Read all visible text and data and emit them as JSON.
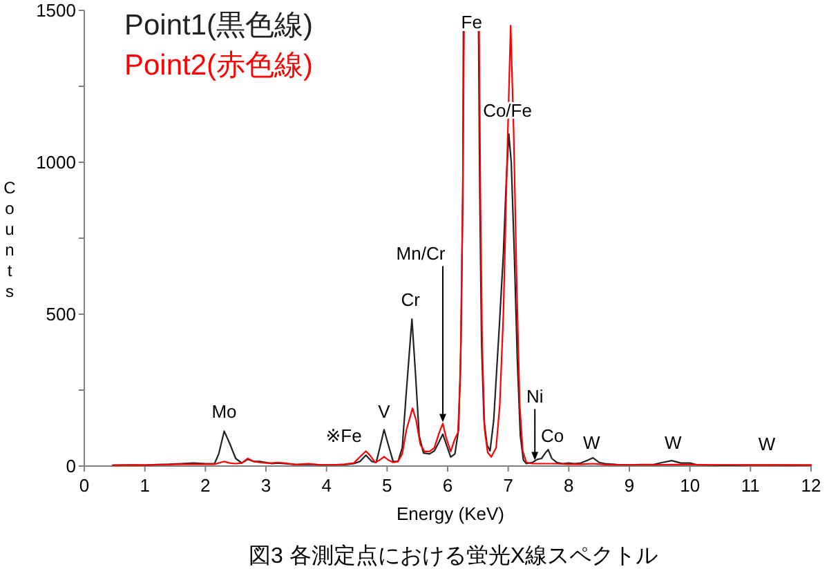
{
  "chart_data": {
    "type": "line",
    "title": "図3 各測定点における蛍光X線スペクトル",
    "xlabel": "Energy (KeV)",
    "ylabel": "Counts",
    "xlim": [
      0,
      12
    ],
    "xticks": [
      0,
      1,
      2,
      3,
      4,
      5,
      6,
      7,
      8,
      9,
      10,
      11,
      12
    ],
    "ylim": [
      0,
      1500
    ],
    "yticks": [
      0,
      {
        "value": 250,
        "label": null
      },
      500,
      {
        "value": 750,
        "label": null
      },
      1000,
      {
        "value": 1250,
        "label": null
      },
      1500
    ],
    "legend": "top left",
    "series": [
      {
        "name": "Point1(黒色線)",
        "color": "#222222",
        "x": [
          0.47,
          0.8,
          1.0,
          1.2,
          1.4,
          1.6,
          1.8,
          2.0,
          2.15,
          2.22,
          2.31,
          2.4,
          2.5,
          2.6,
          2.7,
          2.8,
          2.9,
          3.0,
          3.1,
          3.2,
          3.3,
          3.5,
          3.7,
          3.9,
          4.1,
          4.3,
          4.45,
          4.55,
          4.65,
          4.75,
          4.82,
          4.88,
          4.95,
          5.02,
          5.1,
          5.18,
          5.25,
          5.32,
          5.41,
          5.47,
          5.53,
          5.6,
          5.7,
          5.78,
          5.86,
          5.92,
          5.98,
          6.05,
          6.12,
          6.18,
          6.22,
          6.25,
          6.26,
          6.38,
          6.51,
          6.53,
          6.56,
          6.6,
          6.65,
          6.7,
          6.76,
          6.85,
          6.92,
          6.97,
          7.01,
          7.05,
          7.1,
          7.15,
          7.2,
          7.25,
          7.3,
          7.4,
          7.48,
          7.55,
          7.62,
          7.66,
          7.72,
          7.8,
          7.9,
          8.0,
          8.1,
          8.2,
          8.3,
          8.4,
          8.5,
          8.6,
          8.8,
          9.0,
          9.2,
          9.4,
          9.55,
          9.7,
          9.85,
          10.0,
          10.1,
          10.4,
          10.8,
          11.2,
          11.6,
          12.0
        ],
        "values": [
          3,
          4,
          3,
          5,
          6,
          8,
          10,
          8,
          8,
          40,
          115,
          75,
          25,
          10,
          22,
          15,
          15,
          12,
          8,
          10,
          8,
          5,
          6,
          4,
          4,
          5,
          8,
          15,
          36,
          15,
          12,
          60,
          120,
          70,
          15,
          15,
          60,
          250,
          484,
          300,
          100,
          43,
          40,
          50,
          80,
          105,
          70,
          30,
          40,
          120,
          400,
          900,
          1430,
          null,
          1430,
          900,
          400,
          150,
          70,
          50,
          150,
          450,
          700,
          950,
          1093,
          1000,
          700,
          350,
          100,
          20,
          8,
          12,
          22,
          25,
          45,
          54,
          25,
          12,
          8,
          10,
          8,
          10,
          18,
          27,
          12,
          8,
          5,
          4,
          5,
          5,
          12,
          18,
          10,
          10,
          5,
          3,
          3,
          4,
          3,
          3
        ]
      },
      {
        "name": "Point2(赤色線)",
        "color": "#ff0000",
        "x": [
          0.47,
          0.8,
          1.0,
          1.2,
          1.4,
          1.6,
          1.8,
          2.0,
          2.15,
          2.25,
          2.31,
          2.4,
          2.5,
          2.6,
          2.7,
          2.8,
          2.9,
          3.0,
          3.1,
          3.2,
          3.3,
          3.5,
          3.7,
          3.9,
          4.1,
          4.3,
          4.45,
          4.55,
          4.65,
          4.72,
          4.8,
          4.88,
          4.95,
          5.02,
          5.1,
          5.18,
          5.25,
          5.32,
          5.42,
          5.48,
          5.55,
          5.62,
          5.7,
          5.78,
          5.86,
          5.92,
          5.98,
          6.05,
          6.12,
          6.17,
          6.21,
          6.25,
          6.27,
          6.38,
          6.52,
          6.54,
          6.57,
          6.61,
          6.66,
          6.72,
          6.8,
          6.86,
          6.92,
          6.98,
          7.04,
          7.09,
          7.14,
          7.19,
          7.24,
          7.3,
          7.4,
          7.6,
          7.8,
          8.0,
          8.2,
          8.4,
          8.6,
          8.8,
          9.0,
          9.4,
          9.7,
          10.0,
          10.4,
          10.8,
          11.2,
          11.6,
          12.0
        ],
        "values": [
          2,
          3,
          3,
          4,
          5,
          6,
          6,
          6,
          6,
          12,
          15,
          10,
          8,
          10,
          25,
          15,
          12,
          10,
          10,
          12,
          10,
          5,
          8,
          4,
          4,
          6,
          10,
          30,
          49,
          35,
          12,
          20,
          31,
          20,
          12,
          15,
          40,
          120,
          190,
          150,
          70,
          48,
          48,
          60,
          110,
          140,
          90,
          48,
          90,
          110,
          300,
          900,
          1430,
          null,
          1430,
          900,
          400,
          120,
          45,
          30,
          60,
          200,
          500,
          1000,
          1450,
          1100,
          600,
          200,
          50,
          12,
          8,
          8,
          8,
          6,
          6,
          8,
          5,
          4,
          4,
          4,
          5,
          5,
          4,
          4,
          3,
          4,
          3
        ]
      }
    ],
    "annotations": [
      {
        "text": "Mo",
        "x": 2.31,
        "y": 115
      },
      {
        "text": "※Fe",
        "x": 4.65,
        "y": 49
      },
      {
        "text": "V",
        "x": 4.95,
        "y": 120
      },
      {
        "text": "Cr",
        "x": 5.41,
        "y": 484
      },
      {
        "text": "Mn/Cr",
        "x": 5.92,
        "y": 140
      },
      {
        "text": "Fe",
        "x": 6.26,
        "y": 1430
      },
      {
        "text": "Co/Fe",
        "x": 7.01,
        "y": 1093
      },
      {
        "text": "Ni",
        "x": 7.44,
        "y": 15
      },
      {
        "text": "Co",
        "x": 7.66,
        "y": 54
      },
      {
        "text": "W",
        "x": 8.4,
        "y": 27
      },
      {
        "text": "W",
        "x": 9.7,
        "y": 18
      },
      {
        "text": "W",
        "x": 11.27,
        "y": 5
      }
    ]
  }
}
